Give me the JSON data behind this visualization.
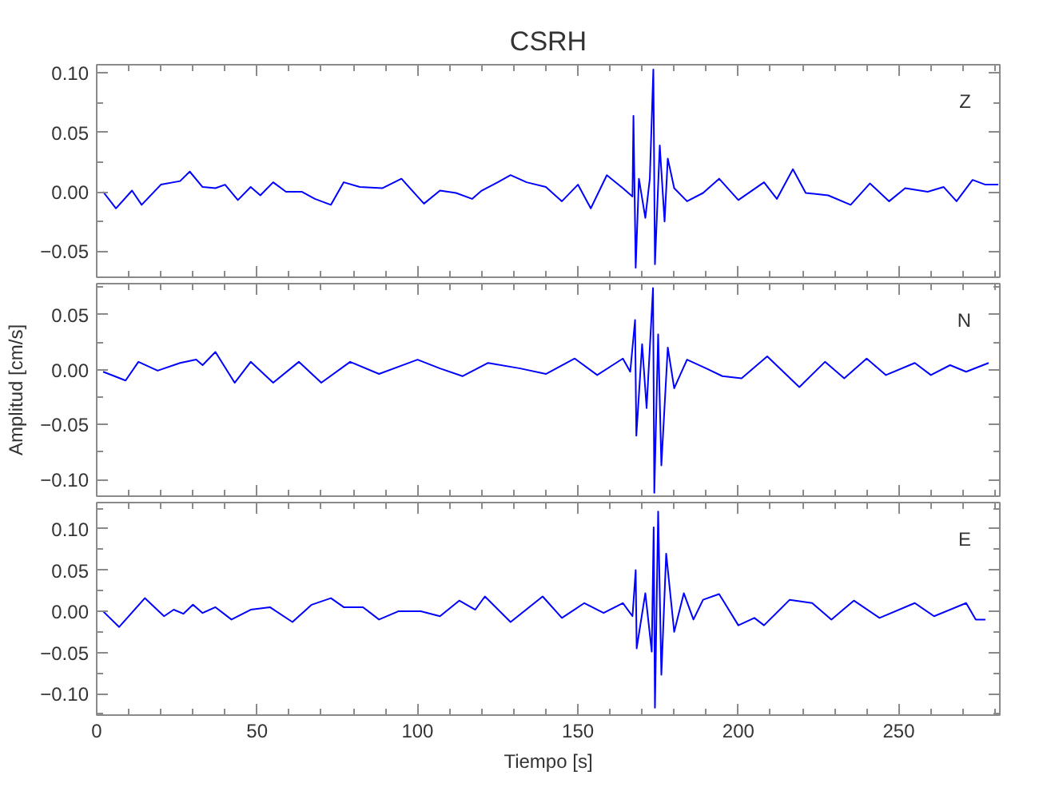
{
  "chart_data": [
    {
      "type": "line",
      "title": "CSRH",
      "annotations": [
        "Z"
      ],
      "tick_labels": "y",
      "marker": "none",
      "line_style": "solid",
      "xlim": [
        0,
        281.5
      ],
      "xticks": [
        0,
        50,
        100,
        150,
        200,
        250
      ],
      "ylim": [
        -0.072,
        0.107
      ],
      "yticks": [
        {
          "value": -0.05,
          "label": "−0.05"
        },
        {
          "value": 0,
          "label": "0.00"
        },
        {
          "value": 0.05,
          "label": "0.05"
        },
        {
          "value": 0.1,
          "label": "0.10"
        }
      ],
      "x": [
        2,
        6,
        11,
        14,
        20,
        26,
        29,
        33,
        37,
        40,
        44,
        48,
        51,
        55,
        59,
        64,
        68,
        73,
        77,
        82,
        89,
        95,
        102,
        107,
        112,
        117,
        120,
        125,
        129,
        134,
        140,
        145,
        150,
        154,
        159,
        164,
        167,
        167.3,
        168,
        169,
        171,
        172.4,
        173.5,
        174,
        175.5,
        177,
        178,
        180,
        184,
        189,
        194,
        200,
        208,
        212,
        217,
        221,
        228,
        235,
        241,
        247,
        252,
        259,
        264,
        268,
        273,
        277,
        281
      ],
      "series": [
        {
          "color": "#0000ff",
          "values": [
            0,
            -0.014,
            0.001,
            -0.011,
            0.006,
            0.009,
            0.017,
            0.004,
            0.003,
            0.006,
            -0.007,
            0.004,
            -0.003,
            0.008,
            0,
            0,
            -0.006,
            -0.011,
            0.008,
            0.004,
            0.003,
            0.011,
            -0.01,
            0.001,
            -0.001,
            -0.006,
            0.001,
            0.008,
            0.014,
            0.008,
            0.004,
            -0.008,
            0.006,
            -0.014,
            0.014,
            0.003,
            -0.004,
            0.064,
            -0.064,
            0.011,
            -0.022,
            0.011,
            0.103,
            -0.061,
            0.039,
            -0.025,
            0.028,
            0.003,
            -0.008,
            -0.001,
            0.011,
            -0.007,
            0.008,
            -0.006,
            0.019,
            -0.001,
            -0.003,
            -0.011,
            0.007,
            -0.008,
            0.003,
            0,
            0.004,
            -0.008,
            0.01,
            0.006,
            0.006
          ]
        }
      ]
    },
    {
      "type": "line",
      "ylabel": "Amplitud [cm/s]",
      "annotations": [
        "N"
      ],
      "tick_labels": "y",
      "marker": "none",
      "line_style": "solid",
      "xlim": [
        0,
        281.5
      ],
      "xticks": [
        0,
        50,
        100,
        150,
        200,
        250
      ],
      "ylim": [
        -0.115,
        0.078
      ],
      "yticks": [
        {
          "value": -0.1,
          "label": "−0.10"
        },
        {
          "value": -0.05,
          "label": "−0.05"
        },
        {
          "value": 0,
          "label": "0.00"
        },
        {
          "value": 0.05,
          "label": "0.05"
        }
      ],
      "x": [
        2,
        9,
        13,
        19,
        26,
        31,
        33,
        37,
        43,
        48,
        55,
        63,
        70,
        79,
        88,
        100,
        107,
        114,
        122,
        132,
        140,
        149,
        156,
        164,
        166.3,
        167.8,
        168.2,
        170,
        171.4,
        173.4,
        173.8,
        175,
        176,
        178,
        180,
        184,
        190,
        195,
        201,
        209,
        219,
        227,
        233,
        240,
        246,
        255,
        260,
        266,
        271,
        278
      ],
      "series": [
        {
          "color": "#0000ff",
          "values": [
            -0.002,
            -0.01,
            0.007,
            -0.001,
            0.006,
            0.009,
            0.004,
            0.016,
            -0.012,
            0.007,
            -0.012,
            0.007,
            -0.012,
            0.007,
            -0.004,
            0.009,
            0.001,
            -0.006,
            0.006,
            0.001,
            -0.004,
            0.01,
            -0.005,
            0.01,
            -0.002,
            0.045,
            -0.06,
            0.023,
            -0.035,
            0.074,
            -0.112,
            0.032,
            -0.087,
            0.02,
            -0.017,
            0.009,
            0.001,
            -0.006,
            -0.008,
            0.012,
            -0.016,
            0.007,
            -0.008,
            0.01,
            -0.005,
            0.006,
            -0.005,
            0.004,
            -0.002,
            0.006
          ]
        }
      ]
    },
    {
      "type": "line",
      "xlabel": "Tiempo [s]",
      "annotations": [
        "E"
      ],
      "marker": "none",
      "line_style": "solid",
      "xlim": [
        0,
        281.5
      ],
      "xticks": [
        0,
        50,
        100,
        150,
        200,
        250
      ],
      "ylim": [
        -0.126,
        0.132
      ],
      "yticks": [
        {
          "value": -0.1,
          "label": "−0.10"
        },
        {
          "value": -0.05,
          "label": "−0.05"
        },
        {
          "value": 0,
          "label": "0.00"
        },
        {
          "value": 0.05,
          "label": "0.05"
        },
        {
          "value": 0.1,
          "label": "0.10"
        }
      ],
      "x": [
        2,
        7,
        15,
        21,
        24,
        27,
        30,
        33,
        37,
        42,
        48,
        54,
        61,
        67,
        73,
        77,
        83,
        88,
        94,
        101,
        107,
        113,
        118,
        121,
        129,
        139,
        145,
        152,
        158,
        164,
        167,
        168,
        168.3,
        171,
        173,
        173.6,
        174,
        175,
        176,
        177.5,
        180,
        183,
        186,
        189,
        194,
        200,
        205,
        208,
        216,
        223,
        229,
        236,
        244,
        255,
        261,
        271,
        274,
        277
      ],
      "series": [
        {
          "color": "#0000ff",
          "values": [
            0,
            -0.019,
            0.016,
            -0.006,
            0.002,
            -0.003,
            0.008,
            -0.002,
            0.005,
            -0.01,
            0.002,
            0.005,
            -0.013,
            0.008,
            0.016,
            0.005,
            0.005,
            -0.01,
            0,
            0,
            -0.006,
            0.013,
            0.002,
            0.018,
            -0.013,
            0.018,
            -0.008,
            0.01,
            -0.002,
            0.01,
            -0.006,
            0.05,
            -0.045,
            0.022,
            -0.049,
            0.102,
            -0.117,
            0.121,
            -0.077,
            0.07,
            -0.025,
            0.022,
            -0.01,
            0.014,
            0.021,
            -0.017,
            -0.008,
            -0.017,
            0.014,
            0.01,
            -0.01,
            0.013,
            -0.008,
            0.01,
            -0.006,
            0.01,
            -0.01,
            -0.01
          ]
        }
      ]
    }
  ]
}
